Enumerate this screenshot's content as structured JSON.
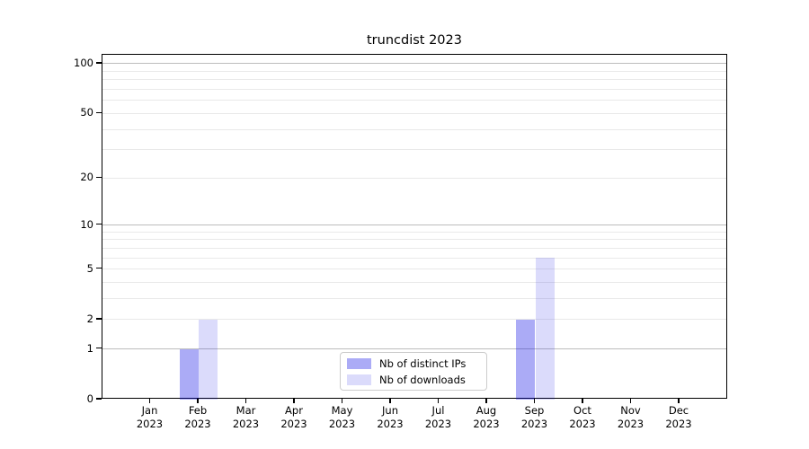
{
  "chart_data": {
    "type": "bar",
    "title": "truncdist 2023",
    "x_months": [
      "Jan",
      "Feb",
      "Mar",
      "Apr",
      "May",
      "Jun",
      "Jul",
      "Aug",
      "Sep",
      "Oct",
      "Nov",
      "Dec"
    ],
    "x_year": "2023",
    "categories": [
      "Jan 2023",
      "Feb 2023",
      "Mar 2023",
      "Apr 2023",
      "May 2023",
      "Jun 2023",
      "Jul 2023",
      "Aug 2023",
      "Sep 2023",
      "Oct 2023",
      "Nov 2023",
      "Dec 2023"
    ],
    "series": [
      {
        "name": "Nb of distinct IPs",
        "values": [
          0,
          1,
          0,
          0,
          0,
          0,
          0,
          0,
          2,
          0,
          0,
          0
        ],
        "color": "rgba(10, 10, 230, 0.34)"
      },
      {
        "name": "Nb of downloads",
        "values": [
          0,
          2,
          0,
          0,
          0,
          0,
          0,
          0,
          6,
          0,
          0,
          0
        ],
        "color": "rgba(10, 10, 230, 0.145)"
      }
    ],
    "yscale": "log1p",
    "ylim": [
      0,
      112
    ],
    "yticks": [
      {
        "value": 0,
        "label": "0"
      },
      {
        "value": 1,
        "label": "1"
      },
      {
        "value": 2,
        "label": "2"
      },
      {
        "value": 5,
        "label": "5"
      },
      {
        "value": 10,
        "label": "10"
      },
      {
        "value": 20,
        "label": "20"
      },
      {
        "value": 50,
        "label": "50"
      },
      {
        "value": 100,
        "label": "100"
      }
    ],
    "major_gridlines": [
      1,
      10,
      100
    ],
    "minor_gridlines": [
      2,
      3,
      4,
      5,
      6,
      7,
      8,
      9,
      20,
      30,
      40,
      50,
      60,
      70,
      80,
      90
    ],
    "grid_major_color": "#bdbdbd",
    "grid_minor_color": "#e9e9e9",
    "legend_position": "lower center",
    "background_color": "#ffffff"
  }
}
